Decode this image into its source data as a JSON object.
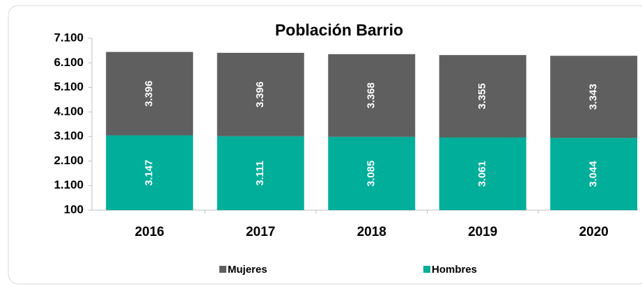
{
  "chart_data": {
    "type": "stacked_bar",
    "title": "Población Barrio",
    "categories": [
      "2016",
      "2017",
      "2018",
      "2019",
      "2020"
    ],
    "series": [
      {
        "name": "Hombres",
        "color": "#00ae9a",
        "values": [
          3147,
          3111,
          3085,
          3061,
          3044
        ],
        "value_labels": [
          "3.147",
          "3.111",
          "3.085",
          "3.061",
          "3.044"
        ]
      },
      {
        "name": "Mujeres",
        "color": "#5f5f5f",
        "values": [
          3396,
          3396,
          3368,
          3355,
          3343
        ],
        "value_labels": [
          "3.396",
          "3.396",
          "3.368",
          "3.355",
          "3.343"
        ]
      }
    ],
    "ylim": [
      100,
      7100
    ],
    "yticks": [
      100,
      {
        "value": 1100,
        "label": "1.100"
      },
      {
        "value": 2100,
        "label": "2.100"
      },
      {
        "value": 3100,
        "label": "3.100"
      },
      {
        "value": 4100,
        "label": "4.100"
      },
      {
        "value": 5100,
        "label": "5.100"
      },
      {
        "value": 6100,
        "label": "6.100"
      },
      {
        "value": 7100,
        "label": "7.100"
      }
    ],
    "legend": "bottom"
  }
}
